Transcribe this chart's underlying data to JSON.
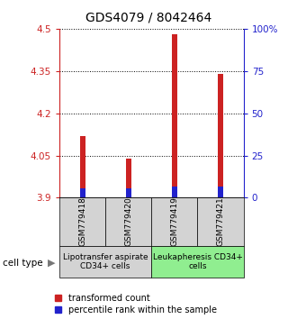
{
  "title": "GDS4079 / 8042464",
  "samples": [
    "GSM779418",
    "GSM779420",
    "GSM779419",
    "GSM779421"
  ],
  "red_values": [
    4.12,
    4.04,
    4.48,
    4.34
  ],
  "blue_values": [
    3.935,
    3.932,
    3.94,
    3.94
  ],
  "baseline": 3.9,
  "ylim_left": [
    3.9,
    4.5
  ],
  "ylim_right": [
    0,
    100
  ],
  "yticks_left": [
    3.9,
    4.05,
    4.2,
    4.35,
    4.5
  ],
  "yticks_right": [
    0,
    25,
    50,
    75,
    100
  ],
  "ytick_labels_left": [
    "3.9",
    "4.05",
    "4.2",
    "4.35",
    "4.5"
  ],
  "ytick_labels_right": [
    "0",
    "25",
    "50",
    "75",
    "100%"
  ],
  "group_labels": [
    "Lipotransfer aspirate\nCD34+ cells",
    "Leukapheresis CD34+\ncells"
  ],
  "group_colors": [
    "#d3d3d3",
    "#90ee90"
  ],
  "bar_width": 0.12,
  "red_color": "#cc2222",
  "blue_color": "#2222cc",
  "cell_type_label": "cell type",
  "legend_red": "transformed count",
  "legend_blue": "percentile rank within the sample",
  "title_fontsize": 10,
  "tick_fontsize": 7.5,
  "legend_fontsize": 7,
  "group_label_fontsize": 6.5,
  "sample_label_fontsize": 6.5
}
